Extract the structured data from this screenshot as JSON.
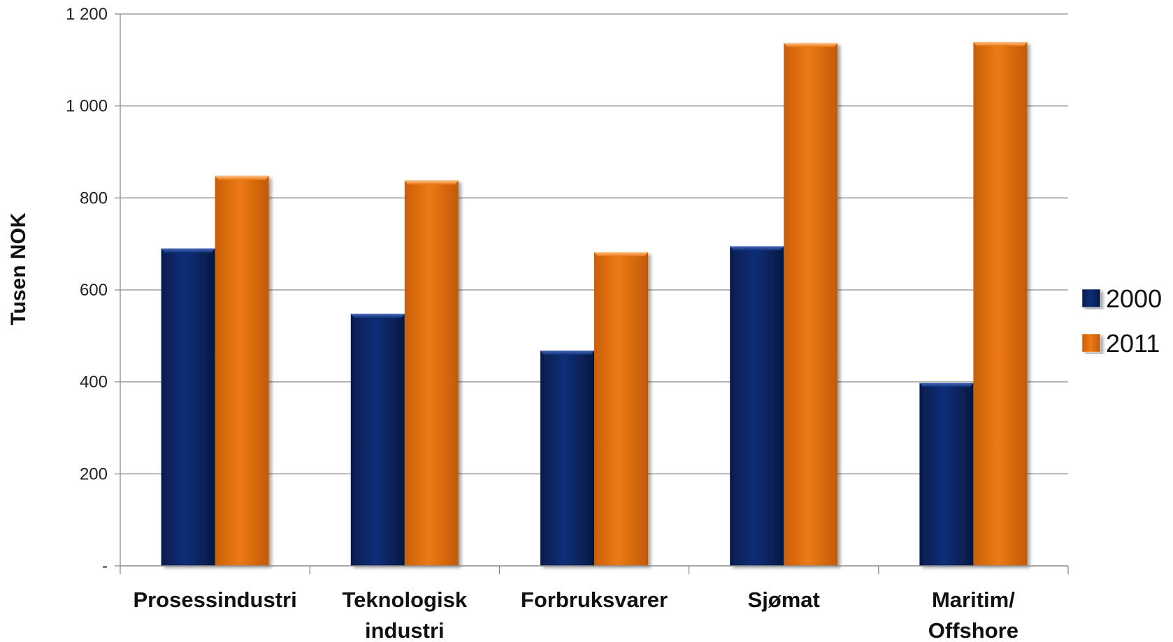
{
  "chart_data": {
    "type": "bar",
    "ylabel": "Tusen NOK",
    "xlabel": "",
    "ylim": [
      0,
      1200
    ],
    "yticks": [
      {
        "value": 0,
        "label": "-"
      },
      {
        "value": 200,
        "label": "200"
      },
      {
        "value": 400,
        "label": "400"
      },
      {
        "value": 600,
        "label": "600"
      },
      {
        "value": 800,
        "label": "800"
      },
      {
        "value": 1000,
        "label": "1 000"
      },
      {
        "value": 1200,
        "label": "1 200"
      }
    ],
    "grid": true,
    "legend_position": "right",
    "categories": [
      [
        "Prosessindustri"
      ],
      [
        "Teknologisk",
        "industri"
      ],
      [
        "Forbruksvarer"
      ],
      [
        "Sjømat"
      ],
      [
        "Maritim/",
        "Offshore"
      ]
    ],
    "series": [
      {
        "name": "2000",
        "color": "#0a2a6b",
        "values": [
          690,
          548,
          468,
          695,
          398
        ]
      },
      {
        "name": "2011",
        "color": "#e07010",
        "values": [
          848,
          838,
          682,
          1137,
          1139
        ]
      }
    ]
  }
}
